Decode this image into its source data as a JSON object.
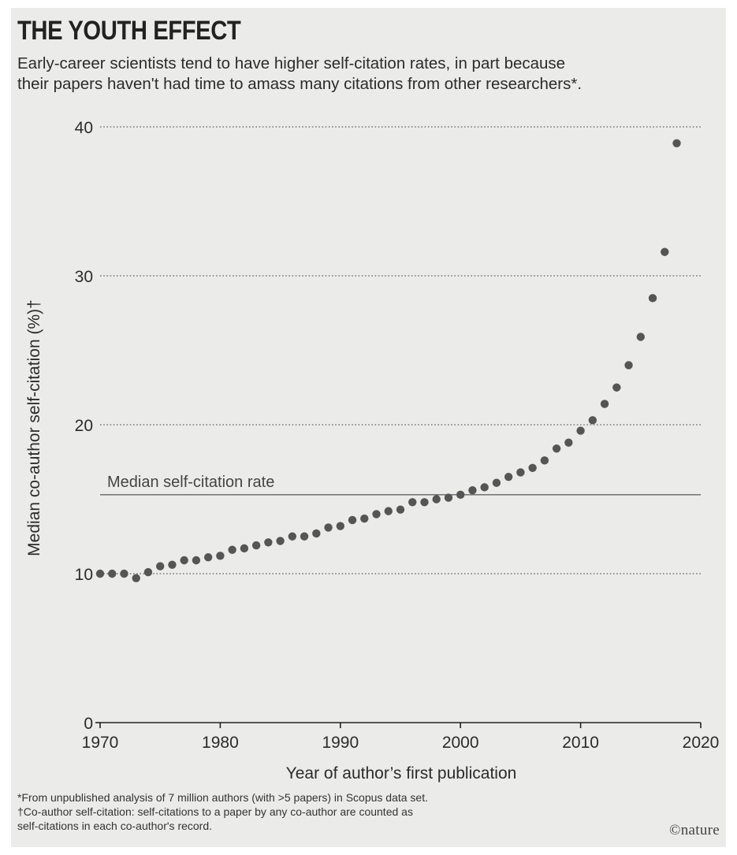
{
  "header": {
    "title": "THE YOUTH EFFECT",
    "subtitle_line1": "Early-career scientists tend to have higher self-citation rates, in part because",
    "subtitle_line2": "their papers haven't had time to amass many citations from other researchers*."
  },
  "footer": {
    "note1": "*From unpublished analysis of 7 million authors (with >5 papers) in Scopus data set.",
    "note2": "†Co-author self-citation: self-citations to a paper by any co-author are counted as",
    "note3": "self-citations in each co-author's record.",
    "brand": "©nature"
  },
  "chart_data": {
    "type": "scatter",
    "xlabel": "Year of author’s first publication",
    "ylabel": "Median co-author self-citation (%)†",
    "xlim": [
      1970,
      2020
    ],
    "ylim": [
      0,
      40
    ],
    "xticks": [
      "1970",
      "1980",
      "1990",
      "2000",
      "2010",
      "2020"
    ],
    "yticks": [
      "0",
      "10",
      "20",
      "30",
      "40"
    ],
    "grid": "horizontal dotted",
    "reference_line": {
      "label": "Median self-citation rate",
      "y": 15.3
    },
    "point_color": "#555555",
    "points": [
      [
        1970,
        10.0
      ],
      [
        1971,
        10.0
      ],
      [
        1972,
        10.0
      ],
      [
        1973,
        9.7
      ],
      [
        1974,
        10.1
      ],
      [
        1975,
        10.5
      ],
      [
        1976,
        10.6
      ],
      [
        1977,
        10.9
      ],
      [
        1978,
        10.9
      ],
      [
        1979,
        11.1
      ],
      [
        1980,
        11.2
      ],
      [
        1981,
        11.6
      ],
      [
        1982,
        11.7
      ],
      [
        1983,
        11.9
      ],
      [
        1984,
        12.1
      ],
      [
        1985,
        12.2
      ],
      [
        1986,
        12.5
      ],
      [
        1987,
        12.5
      ],
      [
        1988,
        12.7
      ],
      [
        1989,
        13.1
      ],
      [
        1990,
        13.2
      ],
      [
        1991,
        13.6
      ],
      [
        1992,
        13.7
      ],
      [
        1993,
        14.0
      ],
      [
        1994,
        14.2
      ],
      [
        1995,
        14.3
      ],
      [
        1996,
        14.8
      ],
      [
        1997,
        14.8
      ],
      [
        1998,
        15.0
      ],
      [
        1999,
        15.1
      ],
      [
        2000,
        15.3
      ],
      [
        2001,
        15.6
      ],
      [
        2002,
        15.8
      ],
      [
        2003,
        16.1
      ],
      [
        2004,
        16.5
      ],
      [
        2005,
        16.8
      ],
      [
        2006,
        17.1
      ],
      [
        2007,
        17.6
      ],
      [
        2008,
        18.4
      ],
      [
        2009,
        18.8
      ],
      [
        2010,
        19.6
      ],
      [
        2011,
        20.3
      ],
      [
        2012,
        21.4
      ],
      [
        2013,
        22.5
      ],
      [
        2014,
        24.0
      ],
      [
        2015,
        25.9
      ],
      [
        2016,
        28.5
      ],
      [
        2017,
        31.6
      ],
      [
        2018,
        38.9
      ]
    ]
  }
}
